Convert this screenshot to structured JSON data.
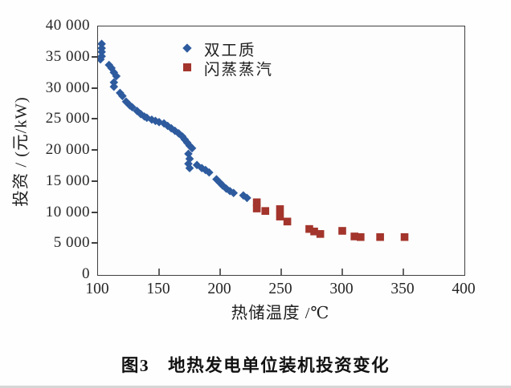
{
  "figure": {
    "caption": "图3　地热发电单位装机投资变化"
  },
  "colors": {
    "binary_series": "#2e5b9e",
    "flash_series": "#a3352c",
    "axis": "#3f3f3f",
    "text": "#1e1e1e"
  },
  "chart_data": {
    "type": "scatter",
    "title": "",
    "xlabel": "热储温度 /℃",
    "ylabel": "投资 / (元/kW)",
    "xlim": [
      100,
      400
    ],
    "ylim": [
      0,
      40000
    ],
    "grid": false,
    "legend_position": "inside-top-center",
    "x_ticks": [
      100,
      150,
      200,
      250,
      300,
      350,
      400
    ],
    "x_tick_labels": [
      "100",
      "150",
      "200",
      "250",
      "300",
      "350",
      "400"
    ],
    "y_ticks": [
      0,
      5000,
      10000,
      15000,
      20000,
      25000,
      30000,
      35000,
      40000
    ],
    "y_tick_labels": [
      "0",
      "5 000",
      "10 000",
      "15 000",
      "20 000",
      "25 000",
      "30 000",
      "35 000",
      "40 000"
    ],
    "series": [
      {
        "name": "双工质",
        "marker": "diamond",
        "color": "#2e5b9e",
        "points": [
          [
            103,
            37200
          ],
          [
            103,
            36500
          ],
          [
            103,
            35900
          ],
          [
            103,
            35200
          ],
          [
            102,
            34700
          ],
          [
            109,
            33800
          ],
          [
            111,
            33300
          ],
          [
            113,
            32600
          ],
          [
            115,
            32000
          ],
          [
            113,
            31000
          ],
          [
            113,
            30300
          ],
          [
            118,
            29300
          ],
          [
            120,
            28800
          ],
          [
            123,
            27900
          ],
          [
            126,
            27300
          ],
          [
            128,
            27000
          ],
          [
            132,
            26400
          ],
          [
            135,
            25900
          ],
          [
            138,
            25500
          ],
          [
            140,
            25300
          ],
          [
            144,
            25000
          ],
          [
            147,
            24800
          ],
          [
            150,
            24600
          ],
          [
            154,
            24400
          ],
          [
            157,
            24000
          ],
          [
            160,
            23600
          ],
          [
            163,
            23200
          ],
          [
            166,
            22800
          ],
          [
            169,
            22300
          ],
          [
            171,
            21800
          ],
          [
            173,
            21300
          ],
          [
            175,
            20800
          ],
          [
            177,
            20400
          ],
          [
            174,
            19500
          ],
          [
            175,
            18700
          ],
          [
            174,
            17900
          ],
          [
            175,
            17200
          ],
          [
            181,
            17700
          ],
          [
            185,
            17200
          ],
          [
            188,
            16900
          ],
          [
            191,
            16500
          ],
          [
            197,
            15400
          ],
          [
            200,
            14800
          ],
          [
            202,
            14400
          ],
          [
            205,
            13900
          ],
          [
            208,
            13500
          ],
          [
            211,
            13200
          ],
          [
            219,
            12800
          ],
          [
            222,
            12400
          ]
        ]
      },
      {
        "name": "闪蒸蒸汽",
        "marker": "square",
        "color": "#a3352c",
        "points": [
          [
            230,
            11700
          ],
          [
            230,
            10700
          ],
          [
            237,
            10300
          ],
          [
            249,
            10600
          ],
          [
            249,
            9400
          ],
          [
            255,
            8600
          ],
          [
            273,
            7400
          ],
          [
            277,
            7000
          ],
          [
            282,
            6600
          ],
          [
            300,
            7100
          ],
          [
            310,
            6200
          ],
          [
            315,
            6100
          ],
          [
            331,
            6100
          ],
          [
            351,
            6100
          ]
        ]
      }
    ]
  }
}
